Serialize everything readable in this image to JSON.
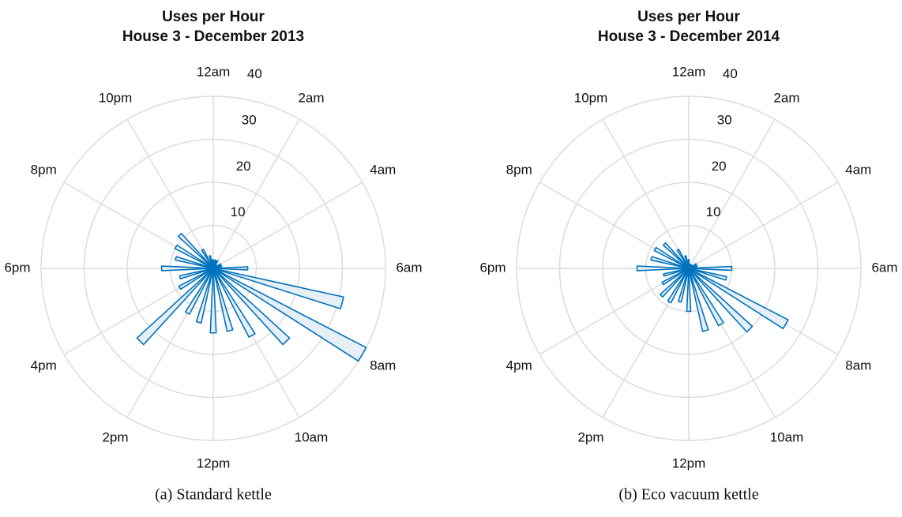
{
  "chart_data": [
    {
      "type": "polar_bar",
      "title": "Uses per Hour",
      "subtitle": "House 3 - December 2013",
      "caption": "(a) Standard kettle",
      "categories": [
        "12am",
        null,
        "2am",
        null,
        "4am",
        null,
        "6am",
        null,
        "8am",
        null,
        "10am",
        null,
        "12pm",
        null,
        "2pm",
        null,
        "4pm",
        null,
        "6pm",
        null,
        "8pm",
        null,
        "10pm",
        null
      ],
      "values": [
        2,
        2,
        2,
        1,
        2,
        2,
        8,
        31,
        40,
        24,
        18,
        15,
        15,
        13,
        12,
        24,
        9,
        8,
        12,
        9,
        10,
        11,
        5,
        3
      ],
      "color": "#0072bd",
      "rlim": [
        0,
        40
      ],
      "rticks": [
        10,
        20,
        30,
        40
      ],
      "grid": true
    },
    {
      "type": "polar_bar",
      "title": "Uses per Hour",
      "subtitle": "House 3 - December 2014",
      "caption": "(b) Eco vacuum kettle",
      "categories": [
        "12am",
        null,
        "2am",
        null,
        "4am",
        null,
        "6am",
        null,
        "8am",
        null,
        "10am",
        null,
        "12pm",
        null,
        "2pm",
        null,
        "4pm",
        null,
        "6pm",
        null,
        "8pm",
        null,
        "10pm",
        null
      ],
      "values": [
        2,
        1,
        1,
        1,
        2,
        2,
        10,
        9,
        26,
        20,
        15,
        15,
        10,
        8,
        9,
        9,
        7,
        6,
        12,
        9,
        9,
        8,
        5,
        3
      ],
      "color": "#0072bd",
      "rlim": [
        0,
        40
      ],
      "rticks": [
        10,
        20,
        30,
        40
      ],
      "grid": true
    }
  ]
}
